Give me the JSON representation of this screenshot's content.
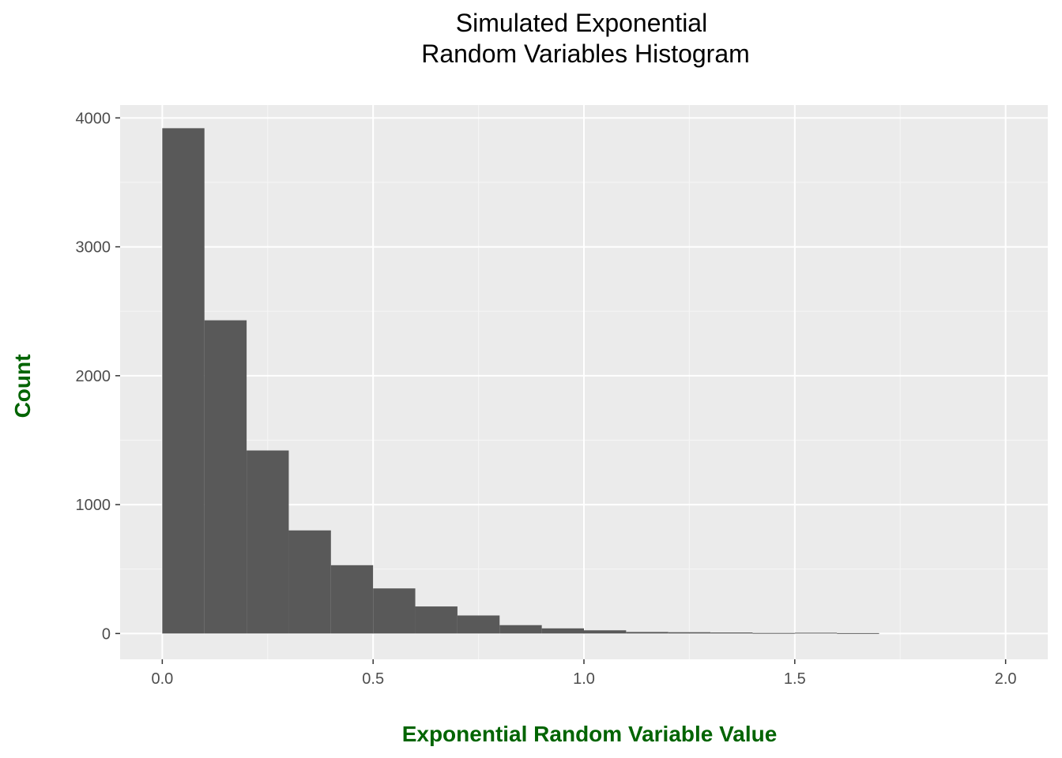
{
  "chart_data": {
    "type": "bar",
    "title_lines": [
      "Simulated Exponential",
      "Random Variables Histogram"
    ],
    "xlabel": "Exponential Random Variable Value",
    "ylabel": "Count",
    "xlim": [
      -0.1,
      2.1
    ],
    "ylim": [
      -200,
      4100
    ],
    "x_ticks": [
      0.0,
      0.5,
      1.0,
      1.5,
      2.0
    ],
    "x_tick_labels": [
      "0.0",
      "0.5",
      "1.0",
      "1.5",
      "2.0"
    ],
    "y_ticks": [
      0,
      1000,
      2000,
      3000,
      4000
    ],
    "y_tick_labels": [
      "0",
      "1000",
      "2000",
      "3000",
      "4000"
    ],
    "bins": [
      {
        "x0": 0.0,
        "x1": 0.1,
        "count": 3920
      },
      {
        "x0": 0.1,
        "x1": 0.2,
        "count": 2430
      },
      {
        "x0": 0.2,
        "x1": 0.3,
        "count": 1420
      },
      {
        "x0": 0.3,
        "x1": 0.4,
        "count": 800
      },
      {
        "x0": 0.4,
        "x1": 0.5,
        "count": 530
      },
      {
        "x0": 0.5,
        "x1": 0.6,
        "count": 350
      },
      {
        "x0": 0.6,
        "x1": 0.7,
        "count": 210
      },
      {
        "x0": 0.7,
        "x1": 0.8,
        "count": 140
      },
      {
        "x0": 0.8,
        "x1": 0.9,
        "count": 65
      },
      {
        "x0": 0.9,
        "x1": 1.0,
        "count": 40
      },
      {
        "x0": 1.0,
        "x1": 1.1,
        "count": 25
      },
      {
        "x0": 1.1,
        "x1": 1.2,
        "count": 12
      },
      {
        "x0": 1.2,
        "x1": 1.3,
        "count": 10
      },
      {
        "x0": 1.3,
        "x1": 1.4,
        "count": 8
      },
      {
        "x0": 1.4,
        "x1": 1.5,
        "count": 4
      },
      {
        "x0": 1.5,
        "x1": 1.6,
        "count": 6
      },
      {
        "x0": 1.6,
        "x1": 1.7,
        "count": 3
      },
      {
        "x0": 1.7,
        "x1": 1.8,
        "count": 0
      },
      {
        "x0": 1.8,
        "x1": 1.9,
        "count": 0
      },
      {
        "x0": 1.9,
        "x1": 2.0,
        "count": 0
      }
    ],
    "grid": true,
    "legend": "none",
    "colors": {
      "panel": "#ebebeb",
      "grid_major": "#ffffff",
      "grid_minor": "#f5f5f5",
      "bar": "#595959",
      "axis_title": "#006400",
      "tick_text": "#4d4d4d"
    }
  }
}
